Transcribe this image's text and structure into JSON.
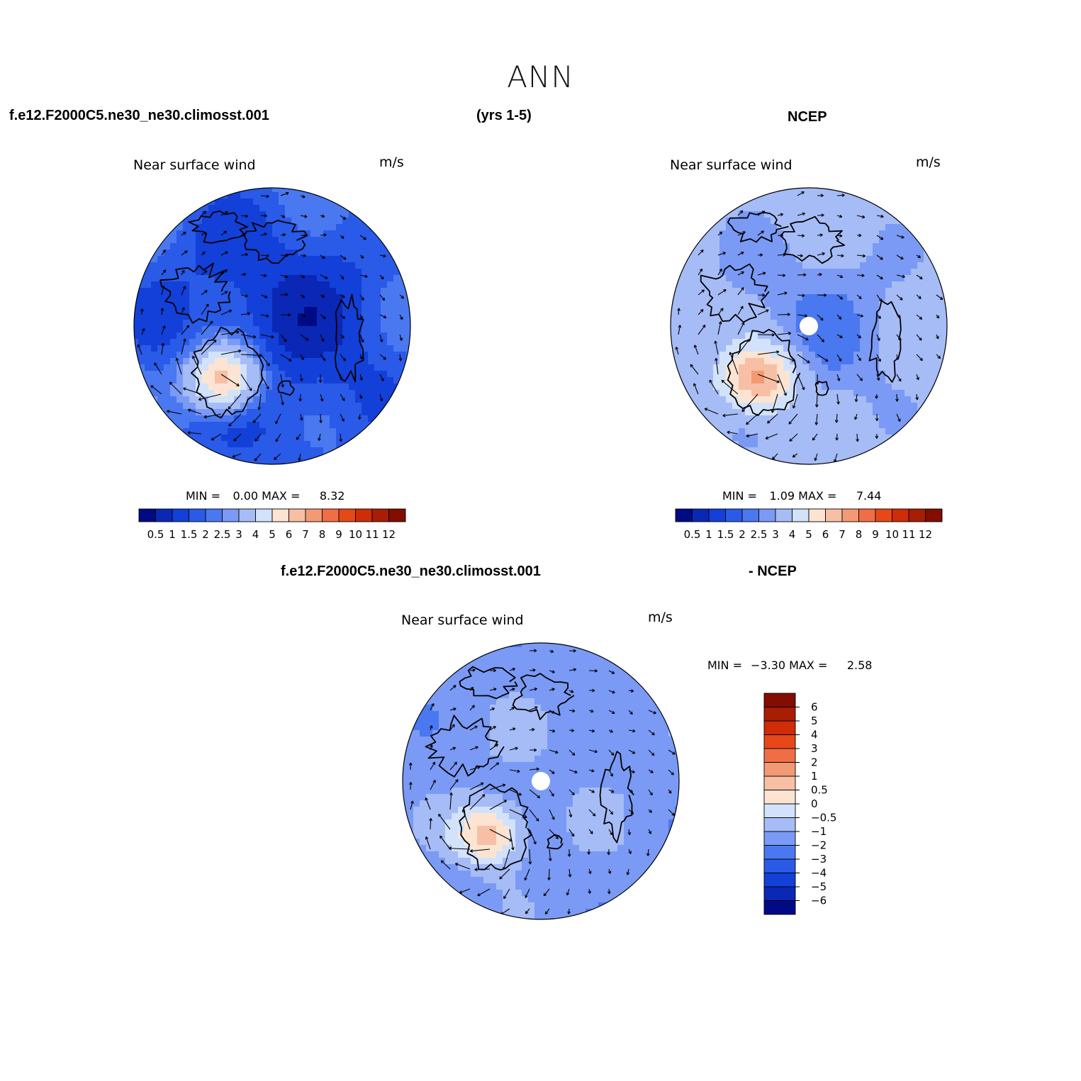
{
  "title": "ANN",
  "headers": {
    "case_name": "f.e12.F2000C5.ne30_ne30.climosst.001",
    "years": "(yrs 1-5)",
    "obs_name": "NCEP",
    "diff_case": "f.e12.F2000C5.ne30_ne30.climosst.001",
    "diff_obs": "- NCEP"
  },
  "colors": {
    "abs_palette": [
      "#000a85",
      "#0a28b5",
      "#1240d8",
      "#2a5ae8",
      "#4a78f0",
      "#7a9af5",
      "#a6bcf7",
      "#d2e2fb",
      "#fde4d2",
      "#f7c0a4",
      "#f39a74",
      "#f06e46",
      "#e74818",
      "#cf2c08",
      "#a81e04",
      "#820d00"
    ],
    "diff_palette": [
      "#000a85",
      "#0a28b5",
      "#1240d8",
      "#2a5ae8",
      "#4a78f0",
      "#7a9af5",
      "#a6bcf7",
      "#d2e2fb",
      "#fde4d2",
      "#f7c0a4",
      "#f39a74",
      "#f06e46",
      "#e74818",
      "#cf2c08",
      "#a81e04",
      "#820d00"
    ]
  },
  "panels": [
    {
      "id": "model",
      "plot_title": "Near surface wind",
      "units": "m/s",
      "min_label": "MIN =",
      "min_value": "0.00",
      "max_label": "MAX =",
      "max_value": "8.32",
      "base_level": 1.0,
      "land_bump": 5.2,
      "pole_hole": false
    },
    {
      "id": "obs",
      "plot_title": "Near surface wind",
      "units": "m/s",
      "min_label": "MIN =",
      "min_value": "1.09",
      "max_label": "MAX =",
      "max_value": "7.44",
      "base_level": 2.6,
      "land_bump": 4.2,
      "pole_hole": true
    },
    {
      "id": "diff",
      "plot_title": "Near surface wind",
      "units": "m/s",
      "min_label": "MIN =",
      "min_value": "−3.30",
      "max_label": "MAX =",
      "max_value": "2.58",
      "base_level": -1.2,
      "land_bump": 2.3,
      "pole_hole": true
    }
  ],
  "chart_data": [
    {
      "type": "heatmap",
      "panel": "model",
      "projection": "north-polar-stereographic",
      "title": "Near surface wind",
      "units": "m/s",
      "min": 0.0,
      "max": 8.32,
      "colorbar_levels": [
        "0.5",
        "1",
        "1.5",
        "2",
        "2.5",
        "3",
        "4",
        "5",
        "6",
        "7",
        "8",
        "9",
        "10",
        "11",
        "12"
      ],
      "colorbar_orientation": "horizontal",
      "overlay": "wind vectors, coastlines"
    },
    {
      "type": "heatmap",
      "panel": "obs",
      "projection": "north-polar-stereographic",
      "title": "Near surface wind",
      "units": "m/s",
      "min": 1.09,
      "max": 7.44,
      "colorbar_levels": [
        "0.5",
        "1",
        "1.5",
        "2",
        "2.5",
        "3",
        "4",
        "5",
        "6",
        "7",
        "8",
        "9",
        "10",
        "11",
        "12"
      ],
      "colorbar_orientation": "horizontal",
      "overlay": "wind vectors, coastlines"
    },
    {
      "type": "heatmap",
      "panel": "diff",
      "projection": "north-polar-stereographic",
      "title": "Near surface wind",
      "units": "m/s",
      "min": -3.3,
      "max": 2.58,
      "colorbar_levels": [
        "−6",
        "−5",
        "−4",
        "−3",
        "−2",
        "−1",
        "−0.5",
        "0",
        "0.5",
        "1",
        "2",
        "3",
        "4",
        "5",
        "6"
      ],
      "colorbar_orientation": "vertical",
      "overlay": "wind vectors, coastlines"
    }
  ]
}
